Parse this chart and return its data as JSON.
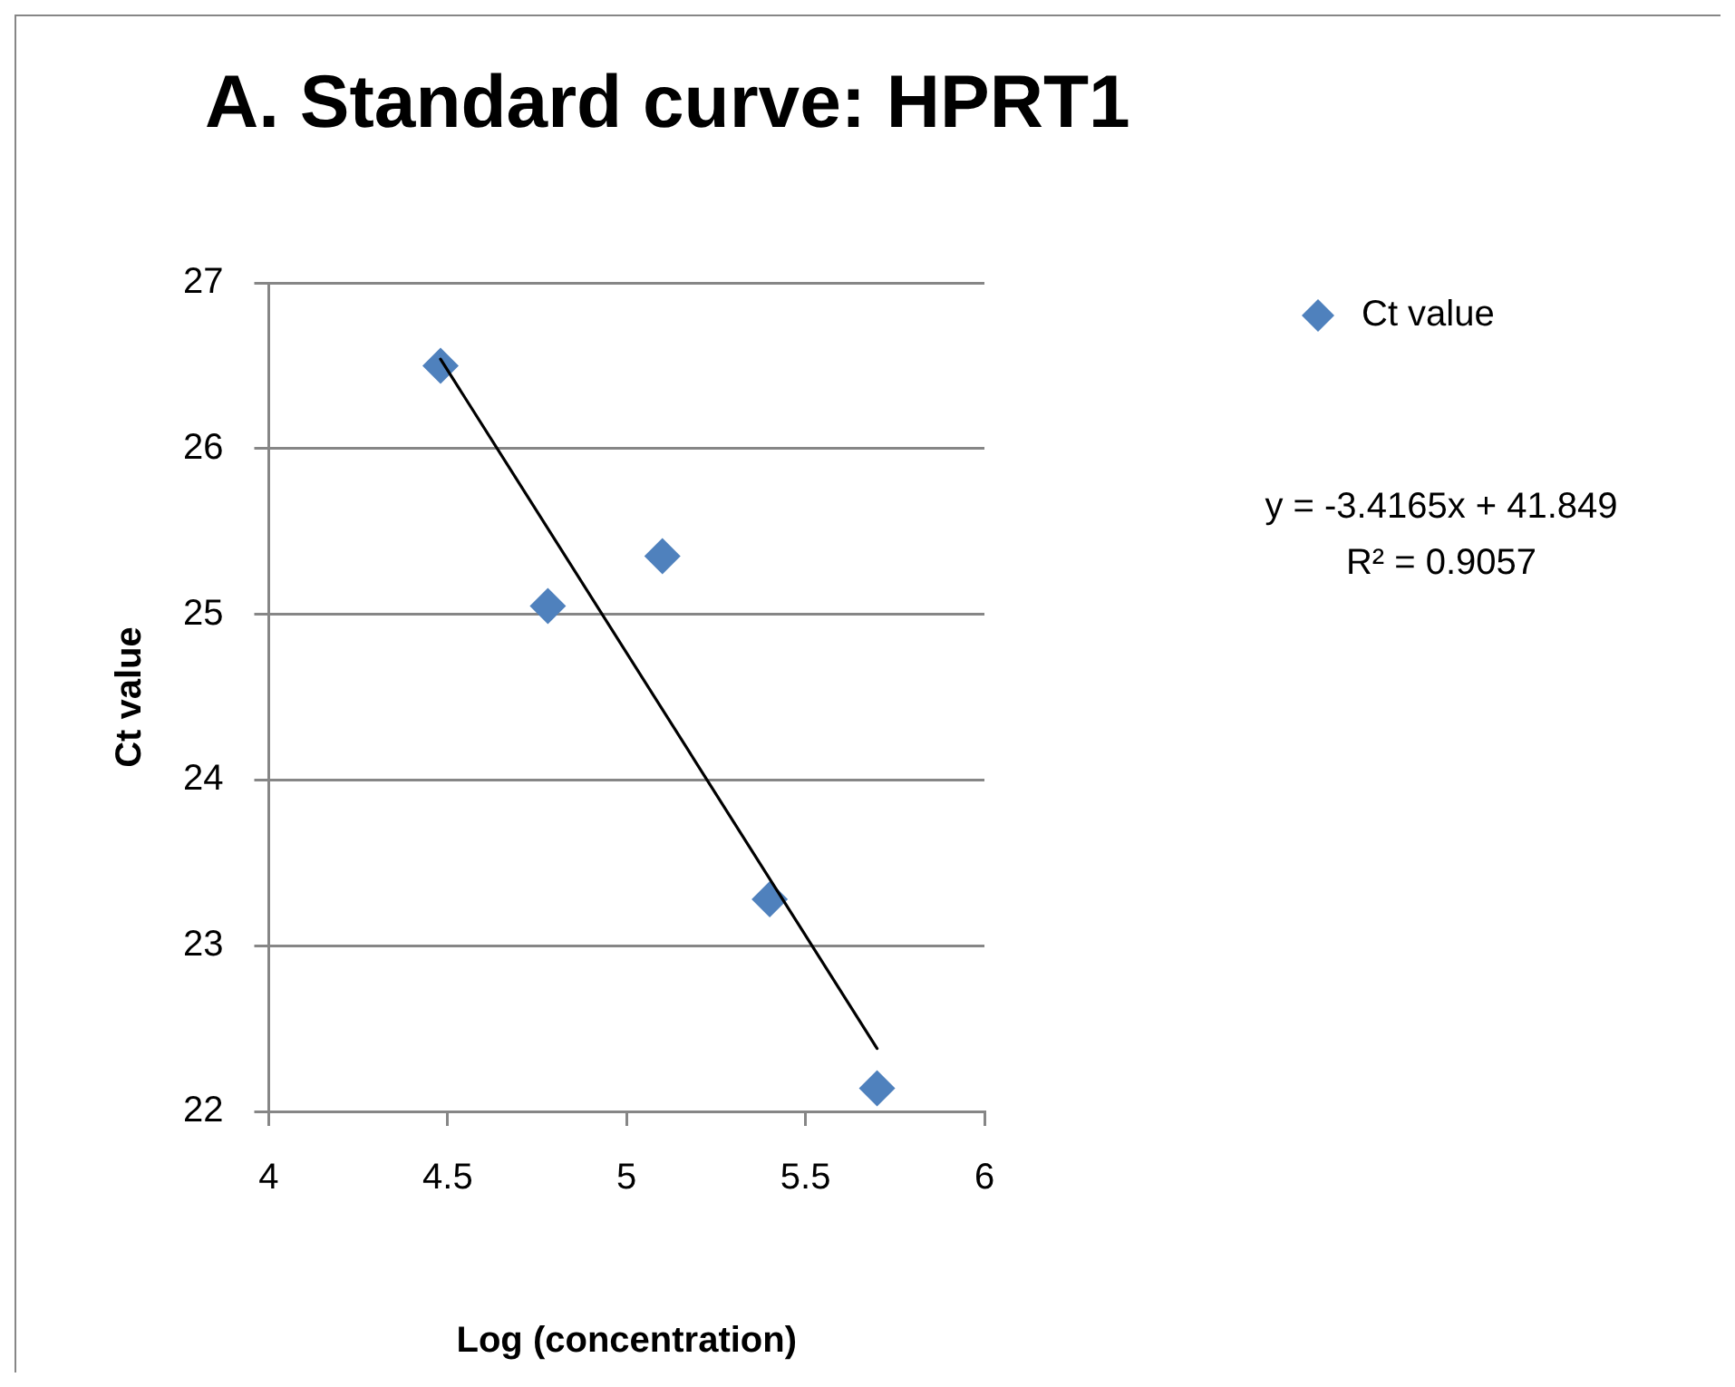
{
  "chart_data": {
    "type": "scatter",
    "title": "A. Standard curve: HPRT1",
    "xlabel": "Log (concentration)",
    "ylabel": "Ct value",
    "series": [
      {
        "name": "Ct value",
        "color": "#4f81bd",
        "x": [
          4.48,
          4.78,
          5.1,
          5.4,
          5.7
        ],
        "values": [
          26.5,
          25.05,
          25.35,
          23.28,
          22.14
        ]
      },
      {
        "type": "line",
        "color": "#000000",
        "marker": "none",
        "x": [
          4.48,
          5.7
        ],
        "values": [
          26.54,
          22.38
        ]
      }
    ],
    "xlim": [
      4,
      6
    ],
    "xticks": [
      4,
      4.5,
      5,
      5.5,
      6
    ],
    "ylim": [
      22,
      27
    ],
    "yticks": [
      22,
      23,
      24,
      25,
      26,
      27
    ],
    "grid": "y",
    "legend": "right",
    "marker": "diamond",
    "annotations": [
      "y = -3.4165x + 41.849",
      "R² = 0.9057"
    ]
  }
}
